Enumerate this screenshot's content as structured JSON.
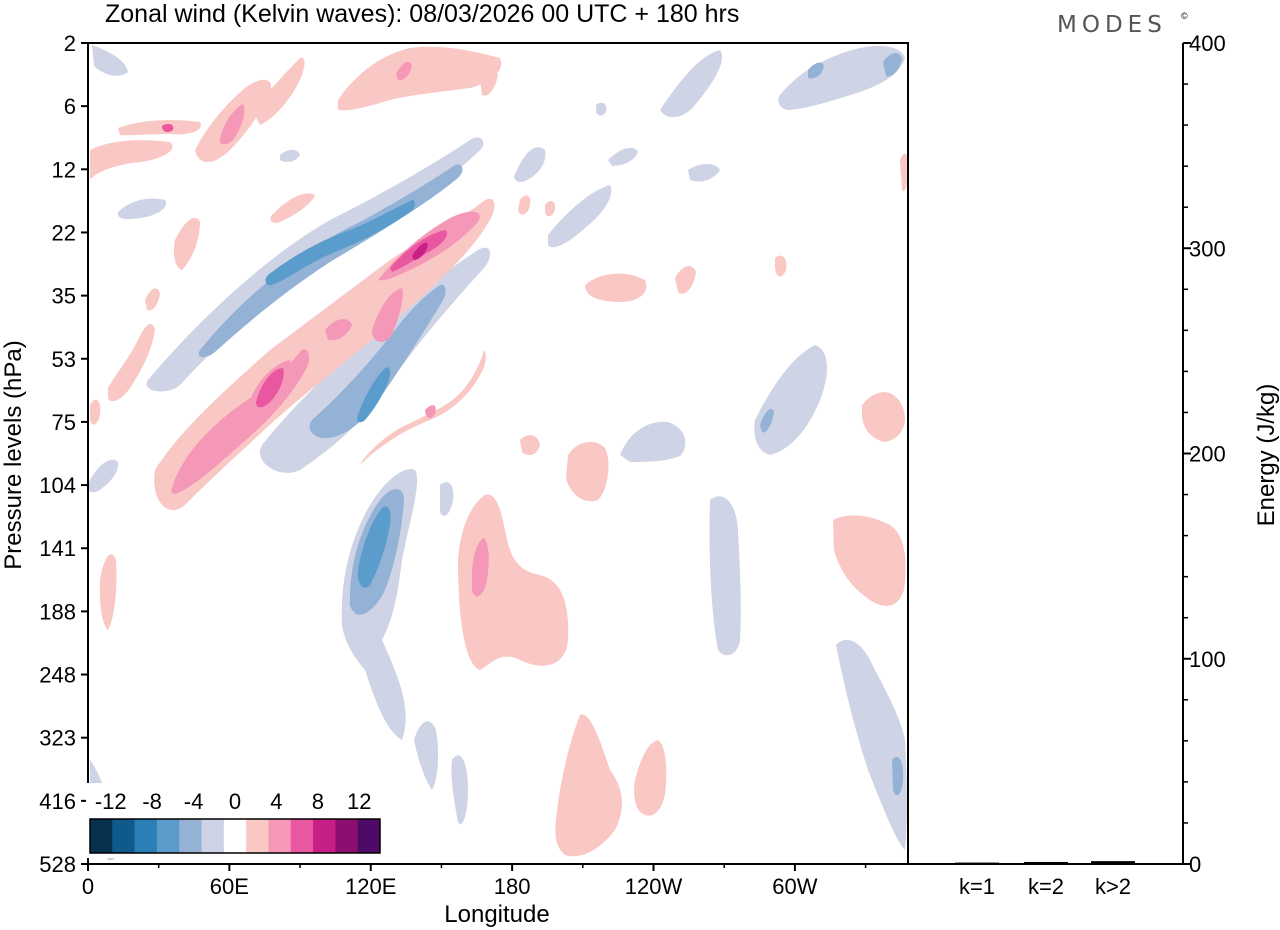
{
  "chart_data": {
    "type": "heatmap",
    "title": "Zonal wind (Kelvin waves):  08/03/2026  00 UTC  + 180 hrs",
    "logo": "MODES",
    "logo_mark": "©",
    "xlabel": "Longitude",
    "ylabel": "Pressure levels (hPa)",
    "x_ticks": [
      "0",
      "60E",
      "120E",
      "180",
      "120W",
      "60W"
    ],
    "y_ticks": [
      "2",
      "6",
      "12",
      "22",
      "35",
      "53",
      "75",
      "104",
      "141",
      "188",
      "248",
      "323",
      "416",
      "528"
    ],
    "colorbar": {
      "labels": [
        "-12",
        "-8",
        "-4",
        "0",
        "4",
        "8",
        "12"
      ],
      "levels": [
        -14,
        -12,
        -10,
        -8,
        -6,
        -4,
        -2,
        2,
        4,
        6,
        8,
        10,
        12,
        14
      ],
      "colors": [
        "#08304f",
        "#0f5a8c",
        "#2b7fb8",
        "#5a9ccb",
        "#93b2d6",
        "#cfd3e6",
        "#ffffff",
        "#fac8c4",
        "#f598b8",
        "#e8579f",
        "#c81f86",
        "#8c0f6f",
        "#4f0a68"
      ]
    },
    "energy_panel": {
      "ylabel": "Energy (J/kg)",
      "ylim": [
        0,
        400
      ],
      "y_ticks": [
        "0",
        "100",
        "200",
        "300",
        "400"
      ],
      "categories": [
        "k=1",
        "k=2",
        "k>2"
      ],
      "values": [
        0.2,
        0.5,
        0.9
      ]
    }
  }
}
